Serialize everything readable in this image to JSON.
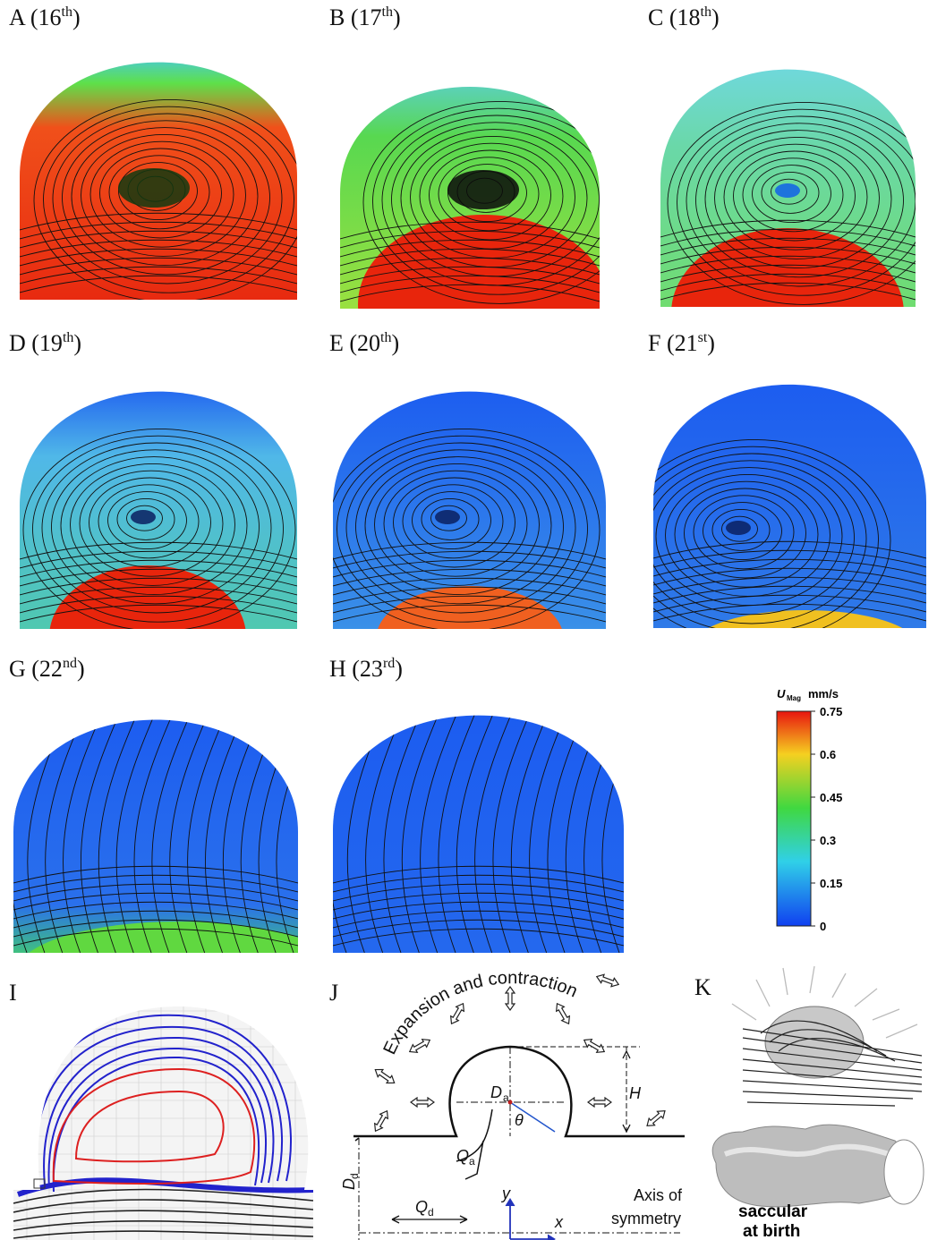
{
  "panels": [
    {
      "main": "A (16",
      "sup": "th",
      "end": ")"
    },
    {
      "main": "B (17",
      "sup": "th",
      "end": ")"
    },
    {
      "main": "C (18",
      "sup": "th",
      "end": ")"
    },
    {
      "main": "D (19",
      "sup": "th",
      "end": ")"
    },
    {
      "main": "E (20",
      "sup": "th",
      "end": ")"
    },
    {
      "main": "F (21",
      "sup": "st",
      "end": ")"
    },
    {
      "main": "G (22",
      "sup": "nd",
      "end": ")"
    },
    {
      "main": "H (23",
      "sup": "rd",
      "end": ")"
    }
  ],
  "colorbar": {
    "symbol": "U",
    "subscript": "Mag",
    "unit": "mm/s",
    "lim": [
      0,
      0.75
    ],
    "ticks": [
      0.75,
      0.6,
      0.45,
      0.3,
      0.15,
      0
    ]
  },
  "panel_i": {
    "label": "I"
  },
  "panel_j": {
    "label": "J",
    "caption": "Expansion and contraction",
    "d_a": "D",
    "d_a_sub": "a",
    "h": "H",
    "theta": "θ",
    "q_a": "Q",
    "q_a_sub": "a",
    "d_d": "D",
    "d_d_sub": "d",
    "q_d": "Q",
    "q_d_sub": "d",
    "y": "y",
    "x": "x",
    "axis_line1": "Axis of",
    "axis_line2": "symmetry"
  },
  "panel_k": {
    "label": "K",
    "caption_line1": "saccular",
    "caption_line2": "at birth"
  }
}
